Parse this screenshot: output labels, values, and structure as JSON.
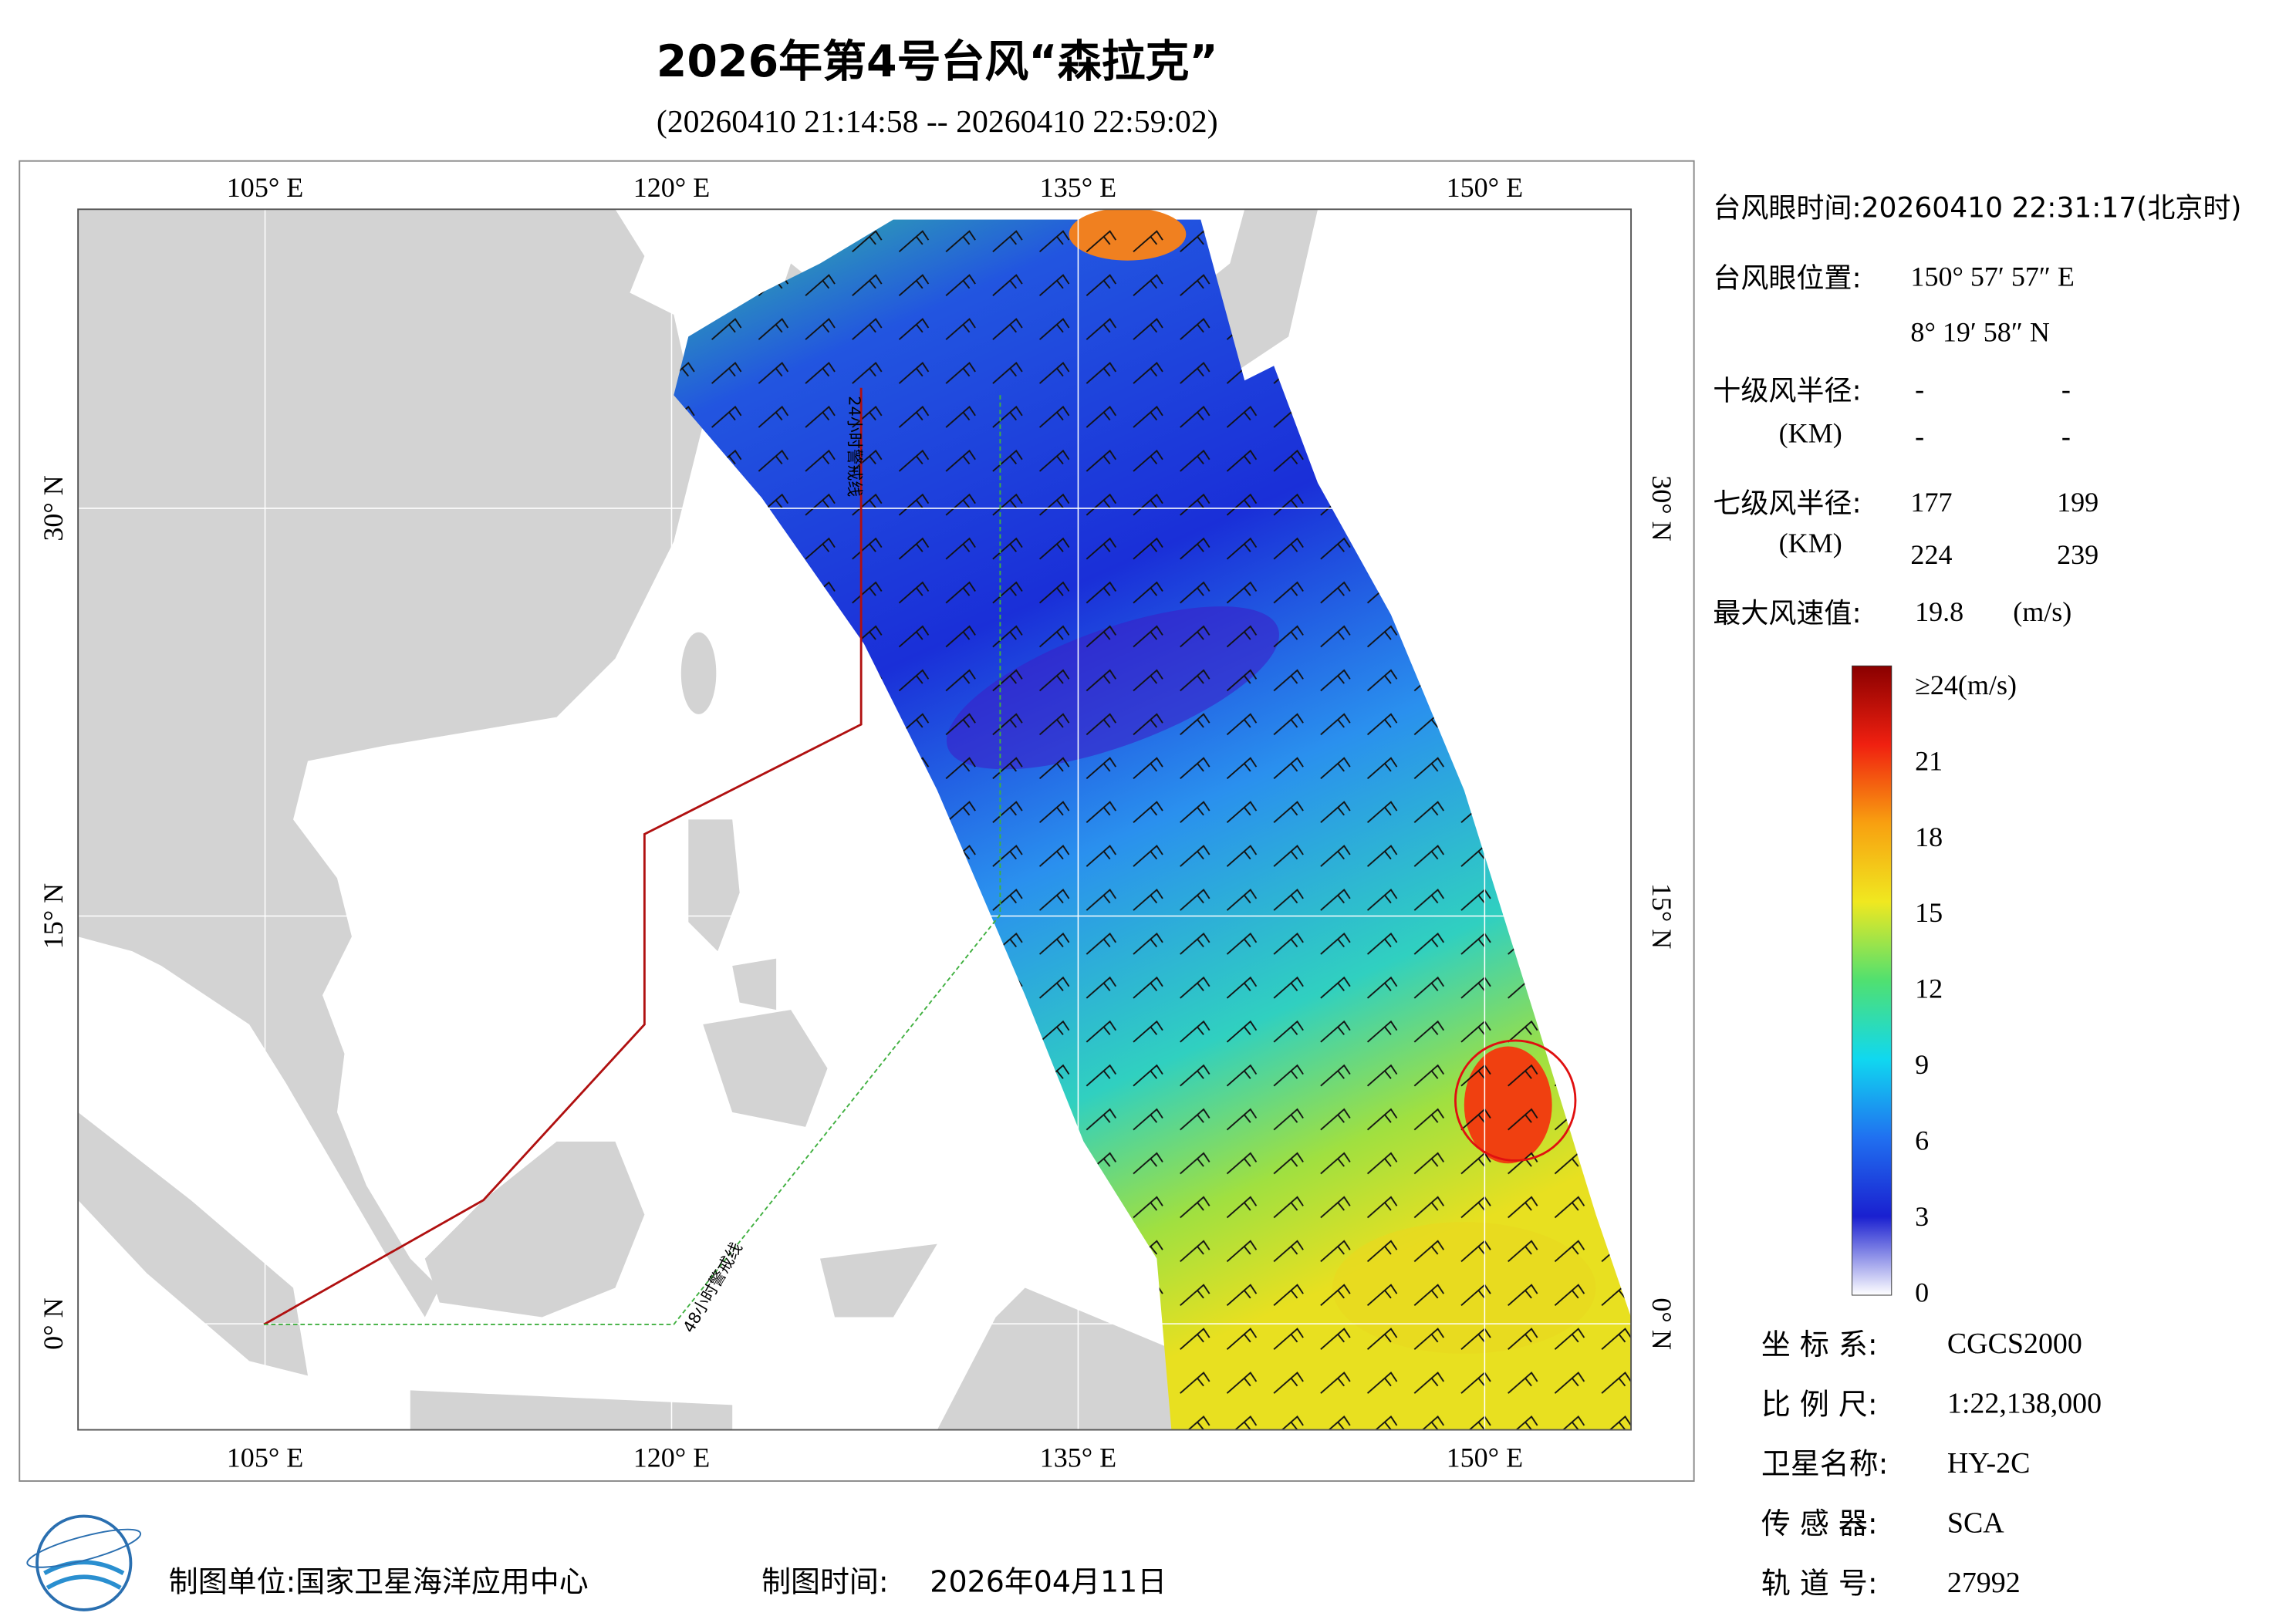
{
  "header": {
    "title": "2026年第4号台风“森拉克”",
    "subtitle": "(20260410 21:14:58 -- 20260410 22:59:02)"
  },
  "map": {
    "lon_range": [
      98.1,
      155.4
    ],
    "lat_range": [
      -3.9,
      41.0
    ],
    "lon_ticks": [
      {
        "value": 105,
        "label": "105° E"
      },
      {
        "value": 120,
        "label": "120° E"
      },
      {
        "value": 135,
        "label": "135° E"
      },
      {
        "value": 150,
        "label": "150° E"
      }
    ],
    "lat_ticks": [
      {
        "value": 0,
        "label": "0° N"
      },
      {
        "value": 15,
        "label": "15° N"
      },
      {
        "value": 30,
        "label": "30° N"
      }
    ],
    "lines": {
      "warning_24h": "24小时警戒线",
      "warning_48h": "48小时警戒线"
    }
  },
  "info": {
    "eye_time": "台风眼时间:20260410 22:31:17(北京时)",
    "eye_pos_label": "台风眼位置:",
    "eye_lon": "150° 57′ 57″ E",
    "eye_lat": "8° 19′ 58″ N",
    "r10_label": "十级风半径:",
    "r10_unit": "(KM)",
    "r10": [
      "-",
      "-",
      "-",
      "-"
    ],
    "r7_label": "七级风半径:",
    "r7_unit": "(KM)",
    "r7": [
      "177",
      "199",
      "224",
      "239"
    ],
    "max_label": "最大风速值:",
    "max_value": "19.8",
    "max_unit": "(m/s)",
    "meta": [
      [
        "坐 标 系:",
        "CGCS2000"
      ],
      [
        "比 例 尺:",
        "1:22,138,000"
      ],
      [
        "卫星名称:",
        "HY-2C"
      ],
      [
        "传 感 器:",
        "SCA"
      ],
      [
        "轨 道 号:",
        "27992"
      ]
    ]
  },
  "colorbar": {
    "range": [
      0,
      24
    ],
    "ticks": [
      0,
      3,
      6,
      9,
      12,
      15,
      18,
      21,
      {
        "value": 24,
        "label": "≥24(m/s)"
      }
    ]
  },
  "footer": {
    "unit": "制图单位:国家卫星海洋应用中心",
    "time_label": "制图时间:",
    "time": "2026年04月11日"
  }
}
